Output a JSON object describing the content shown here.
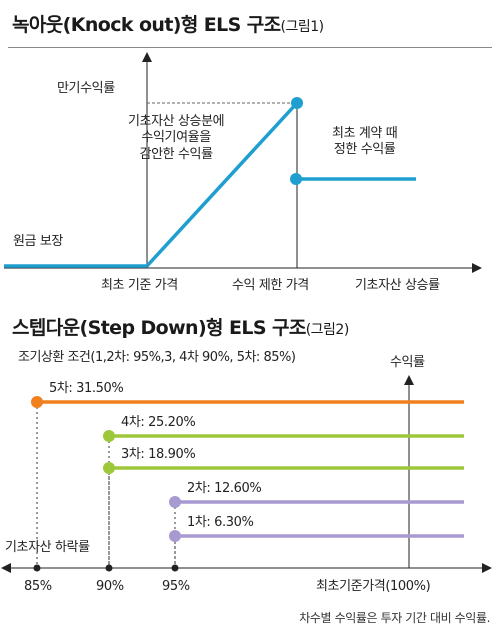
{
  "knockout": {
    "title": "녹아웃(Knock out)형 ELS 구조",
    "title_sub": "(그림1)",
    "y_label": "만기수익률",
    "annotation_lines": [
      "기초자산 상승분에",
      "수익기여율을",
      "감안한 수익률"
    ],
    "fixed_return_lines": [
      "최초 계약 때",
      "정한 수익률"
    ],
    "principal_label": "원금 보장",
    "x_labels": {
      "initial_price": "최초 기준 가격",
      "cap_price": "수익 제한 가격",
      "underlying_rise": "기초자산 상승률"
    },
    "line_color": "#1e9fd0"
  },
  "stepdown": {
    "title": "스텝다운(Step Down)형 ELS 구조",
    "title_sub": "(그림2)",
    "condition": "조기상환 조건(1,2차: 95%,3, 4차 90%, 5차: 85%)",
    "y_label": "수익률",
    "x_axis_label": "기초자산 하락률",
    "x_ticks": [
      "85%",
      "90%",
      "95%"
    ],
    "base_label": "최초기준가격(100%)",
    "rows": [
      {
        "label": "5차: 31.50%",
        "value": 31.5,
        "threshold": 85,
        "color": "#f07f1e"
      },
      {
        "label": "4차: 25.20%",
        "value": 25.2,
        "threshold": 90,
        "color": "#9dc83c"
      },
      {
        "label": "3차: 18.90%",
        "value": 18.9,
        "threshold": 90,
        "color": "#9dc83c"
      },
      {
        "label": "2차: 12.60%",
        "value": 12.6,
        "threshold": 95,
        "color": "#a79ad0"
      },
      {
        "label": "1차: 6.30%",
        "value": 6.3,
        "threshold": 95,
        "color": "#a79ad0"
      }
    ]
  },
  "footnote": "차수별 수익률은 투자 기간 대비 수익률."
}
